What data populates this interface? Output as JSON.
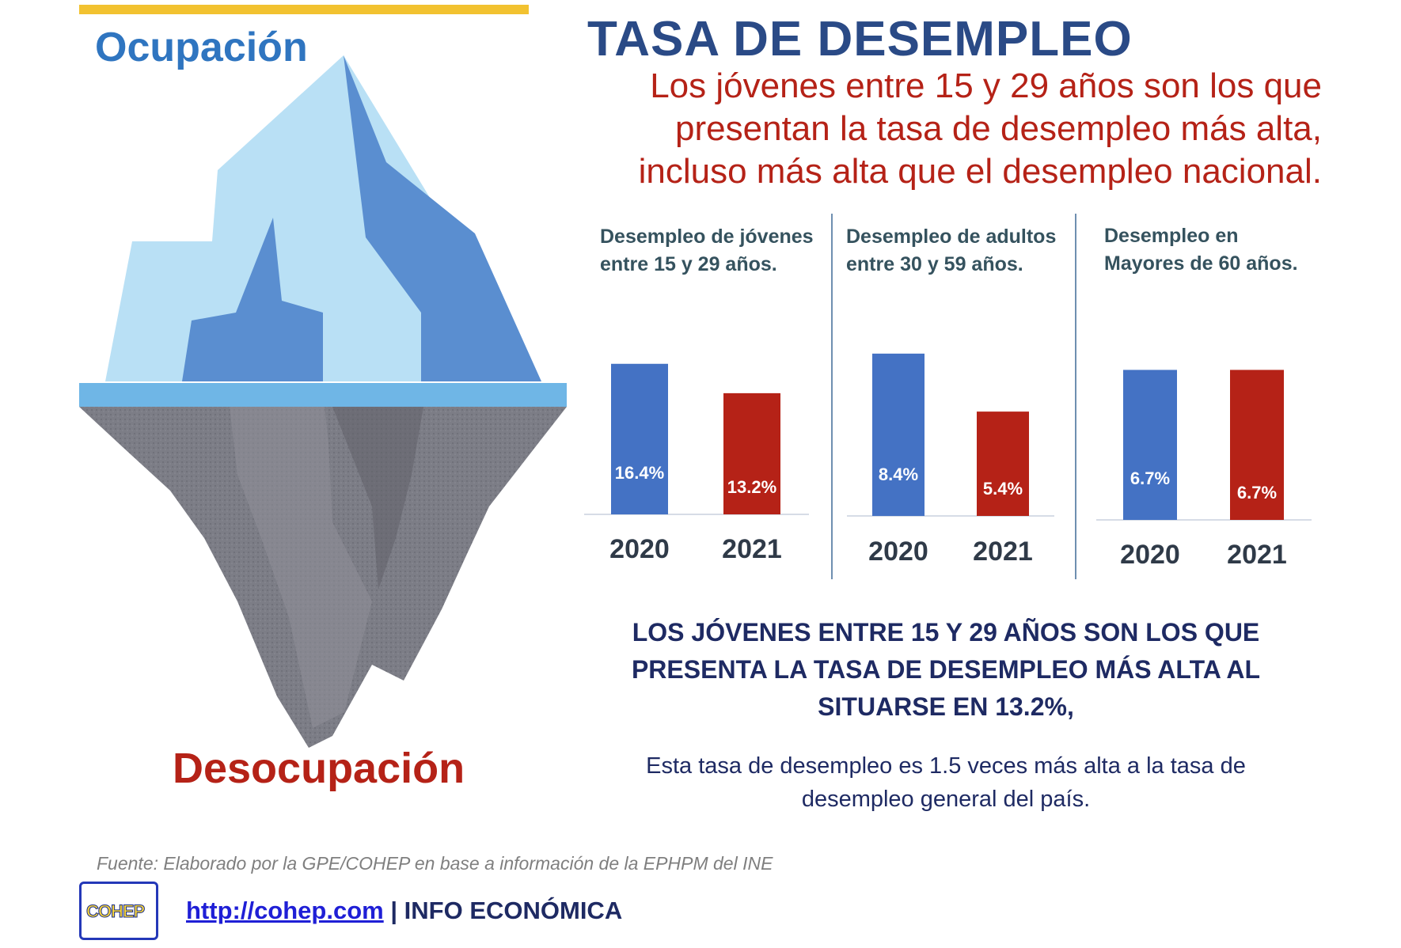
{
  "left_panel": {
    "top_label": "Ocupación",
    "bottom_label": "Desocupación"
  },
  "header": {
    "title": "TASA DE DESEMPLEO",
    "subtitle_lines": [
      "Los jóvenes entre 15 y 29 años son los que",
      "presentan la tasa de desempleo más alta,",
      "incluso más alta que el desempleo nacional."
    ]
  },
  "chart_data": [
    {
      "type": "bar",
      "title": "Desempleo de jóvenes entre 15 y 29 años.",
      "categories": [
        "2020",
        "2021"
      ],
      "values": [
        16.4,
        13.2
      ],
      "labels": [
        "16.4%",
        "13.2%"
      ],
      "colors": [
        "#4472c4",
        "#b52217"
      ],
      "ylim": [
        0,
        20
      ],
      "grid": false
    },
    {
      "type": "bar",
      "title": "Desempleo de adultos entre 30 y 59 años.",
      "categories": [
        "2020",
        "2021"
      ],
      "values": [
        8.4,
        5.4
      ],
      "labels": [
        "8.4%",
        "5.4%"
      ],
      "colors": [
        "#4472c4",
        "#b52217"
      ],
      "ylim": [
        0,
        9.5
      ],
      "grid": false
    },
    {
      "type": "bar",
      "title": "Desempleo en Mayores de 60 años.",
      "categories": [
        "2020",
        "2021"
      ],
      "values": [
        6.7,
        6.7
      ],
      "labels": [
        "6.7%",
        "6.7%"
      ],
      "colors": [
        "#4472c4",
        "#b52217"
      ],
      "ylim": [
        0,
        8.2
      ],
      "grid": false
    }
  ],
  "conclusion": {
    "lines": [
      "LOS JÓVENES ENTRE 15 Y 29 AÑOS SON LOS QUE",
      "PRESENTA LA TASA DE DESEMPLEO MÁS ALTA AL",
      "SITUARSE EN 13.2%,"
    ],
    "note_lines": [
      "Esta tasa de desempleo es 1.5 veces más alta a la tasa de",
      "desempleo general del país."
    ]
  },
  "footer": {
    "source": "Fuente: Elaborado por la GPE/COHEP en base a información de la EPHPM del INE",
    "logo_text": "COHEP",
    "link_text": "http://cohep.com",
    "separator": "|",
    "section_label": "INFO ECONÓMICA"
  },
  "colors": {
    "accent_blue": "#2f75c0",
    "accent_red": "#b52217",
    "title_navy": "#2a4a86",
    "bar_2020": "#4472c4",
    "bar_2021": "#b52217",
    "top_bar": "#f2c230"
  }
}
